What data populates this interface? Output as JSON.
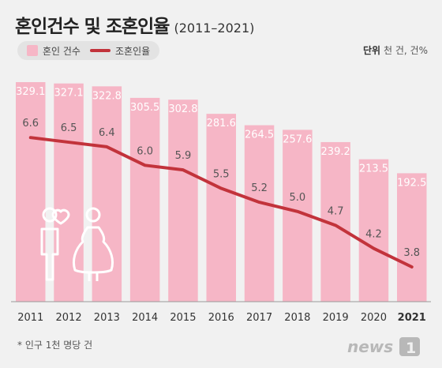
{
  "header": {
    "title": "혼인건수 및 조혼인율",
    "subtitle": "(2011–2021)"
  },
  "legend": {
    "bar_label": "혼인 건수",
    "line_label": "조혼인율"
  },
  "unit": {
    "label": "단위",
    "value": "천 건, 건%"
  },
  "footnote": "* 인구 1천 명당 건",
  "logo_text": "news1",
  "colors": {
    "bar": "#f6b6c6",
    "line": "#c2333b",
    "bar_label": "#ffffff",
    "line_label": "#555555",
    "background": "#f1f1f1"
  },
  "chart_data": {
    "type": "bar",
    "categories": [
      "2011",
      "2012",
      "2013",
      "2014",
      "2015",
      "2016",
      "2017",
      "2018",
      "2019",
      "2020",
      "2021"
    ],
    "series": [
      {
        "name": "혼인 건수",
        "type": "bar",
        "values": [
          329.1,
          327.1,
          322.8,
          305.5,
          302.8,
          281.6,
          264.5,
          257.6,
          239.2,
          213.5,
          192.5
        ]
      },
      {
        "name": "조혼인율",
        "type": "line",
        "values": [
          6.6,
          6.5,
          6.4,
          6.0,
          5.9,
          5.5,
          5.2,
          5.0,
          4.7,
          4.2,
          3.8
        ]
      }
    ],
    "highlight_category": "2021"
  }
}
